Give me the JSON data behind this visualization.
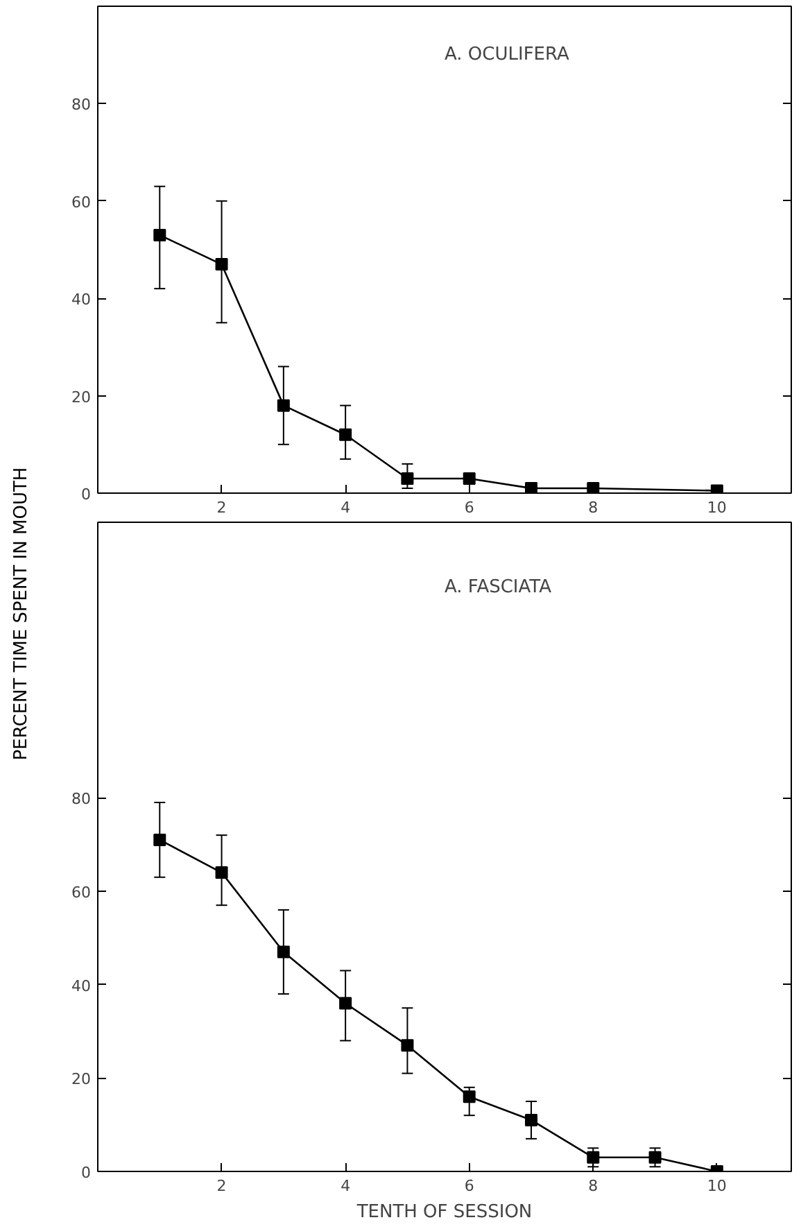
{
  "chart_data": [
    {
      "type": "line",
      "title": "A. OCULIFERA",
      "ylabel": "PERCENT TIME SPENT IN MOUTH",
      "x": [
        1,
        2,
        3,
        4,
        5,
        6,
        7,
        8,
        10
      ],
      "series": [
        {
          "color": "#000000",
          "values": [
            53,
            47,
            18,
            12,
            3,
            3,
            1,
            1,
            0.5
          ],
          "errors": [
            [
              42,
              63
            ],
            [
              35,
              60
            ],
            [
              10,
              26
            ],
            [
              7,
              18
            ],
            [
              1,
              6
            ],
            [
              2,
              4
            ],
            [
              0,
              2
            ],
            [
              0,
              1.5
            ],
            null
          ]
        }
      ],
      "xlim": [
        0,
        11.2
      ],
      "ylim": [
        0,
        100
      ],
      "xticks": [
        2,
        4,
        6,
        8,
        10
      ],
      "yticks": [
        0,
        20,
        40,
        60,
        80
      ],
      "marker": "square",
      "line_style": "solid",
      "grid": false
    },
    {
      "type": "line",
      "title": "A. FASCIATA",
      "xlabel": "TENTH OF SESSION",
      "x": [
        1,
        2,
        3,
        4,
        5,
        6,
        7,
        8,
        9,
        10
      ],
      "series": [
        {
          "color": "#000000",
          "values": [
            71,
            64,
            47,
            36,
            27,
            16,
            11,
            3,
            3,
            0
          ],
          "errors": [
            [
              63,
              79
            ],
            [
              57,
              72
            ],
            [
              38,
              56
            ],
            [
              28,
              43
            ],
            [
              21,
              35
            ],
            [
              12,
              18
            ],
            [
              7,
              15
            ],
            [
              1,
              5
            ],
            [
              1,
              5
            ],
            [
              0,
              1
            ]
          ]
        }
      ],
      "xlim": [
        0,
        11.2
      ],
      "ylim": [
        0,
        139
      ],
      "xticks": [
        2,
        4,
        6,
        8,
        10
      ],
      "yticks": [
        0,
        20,
        40,
        60,
        80
      ],
      "marker": "square",
      "line_style": "solid",
      "grid": false
    }
  ]
}
